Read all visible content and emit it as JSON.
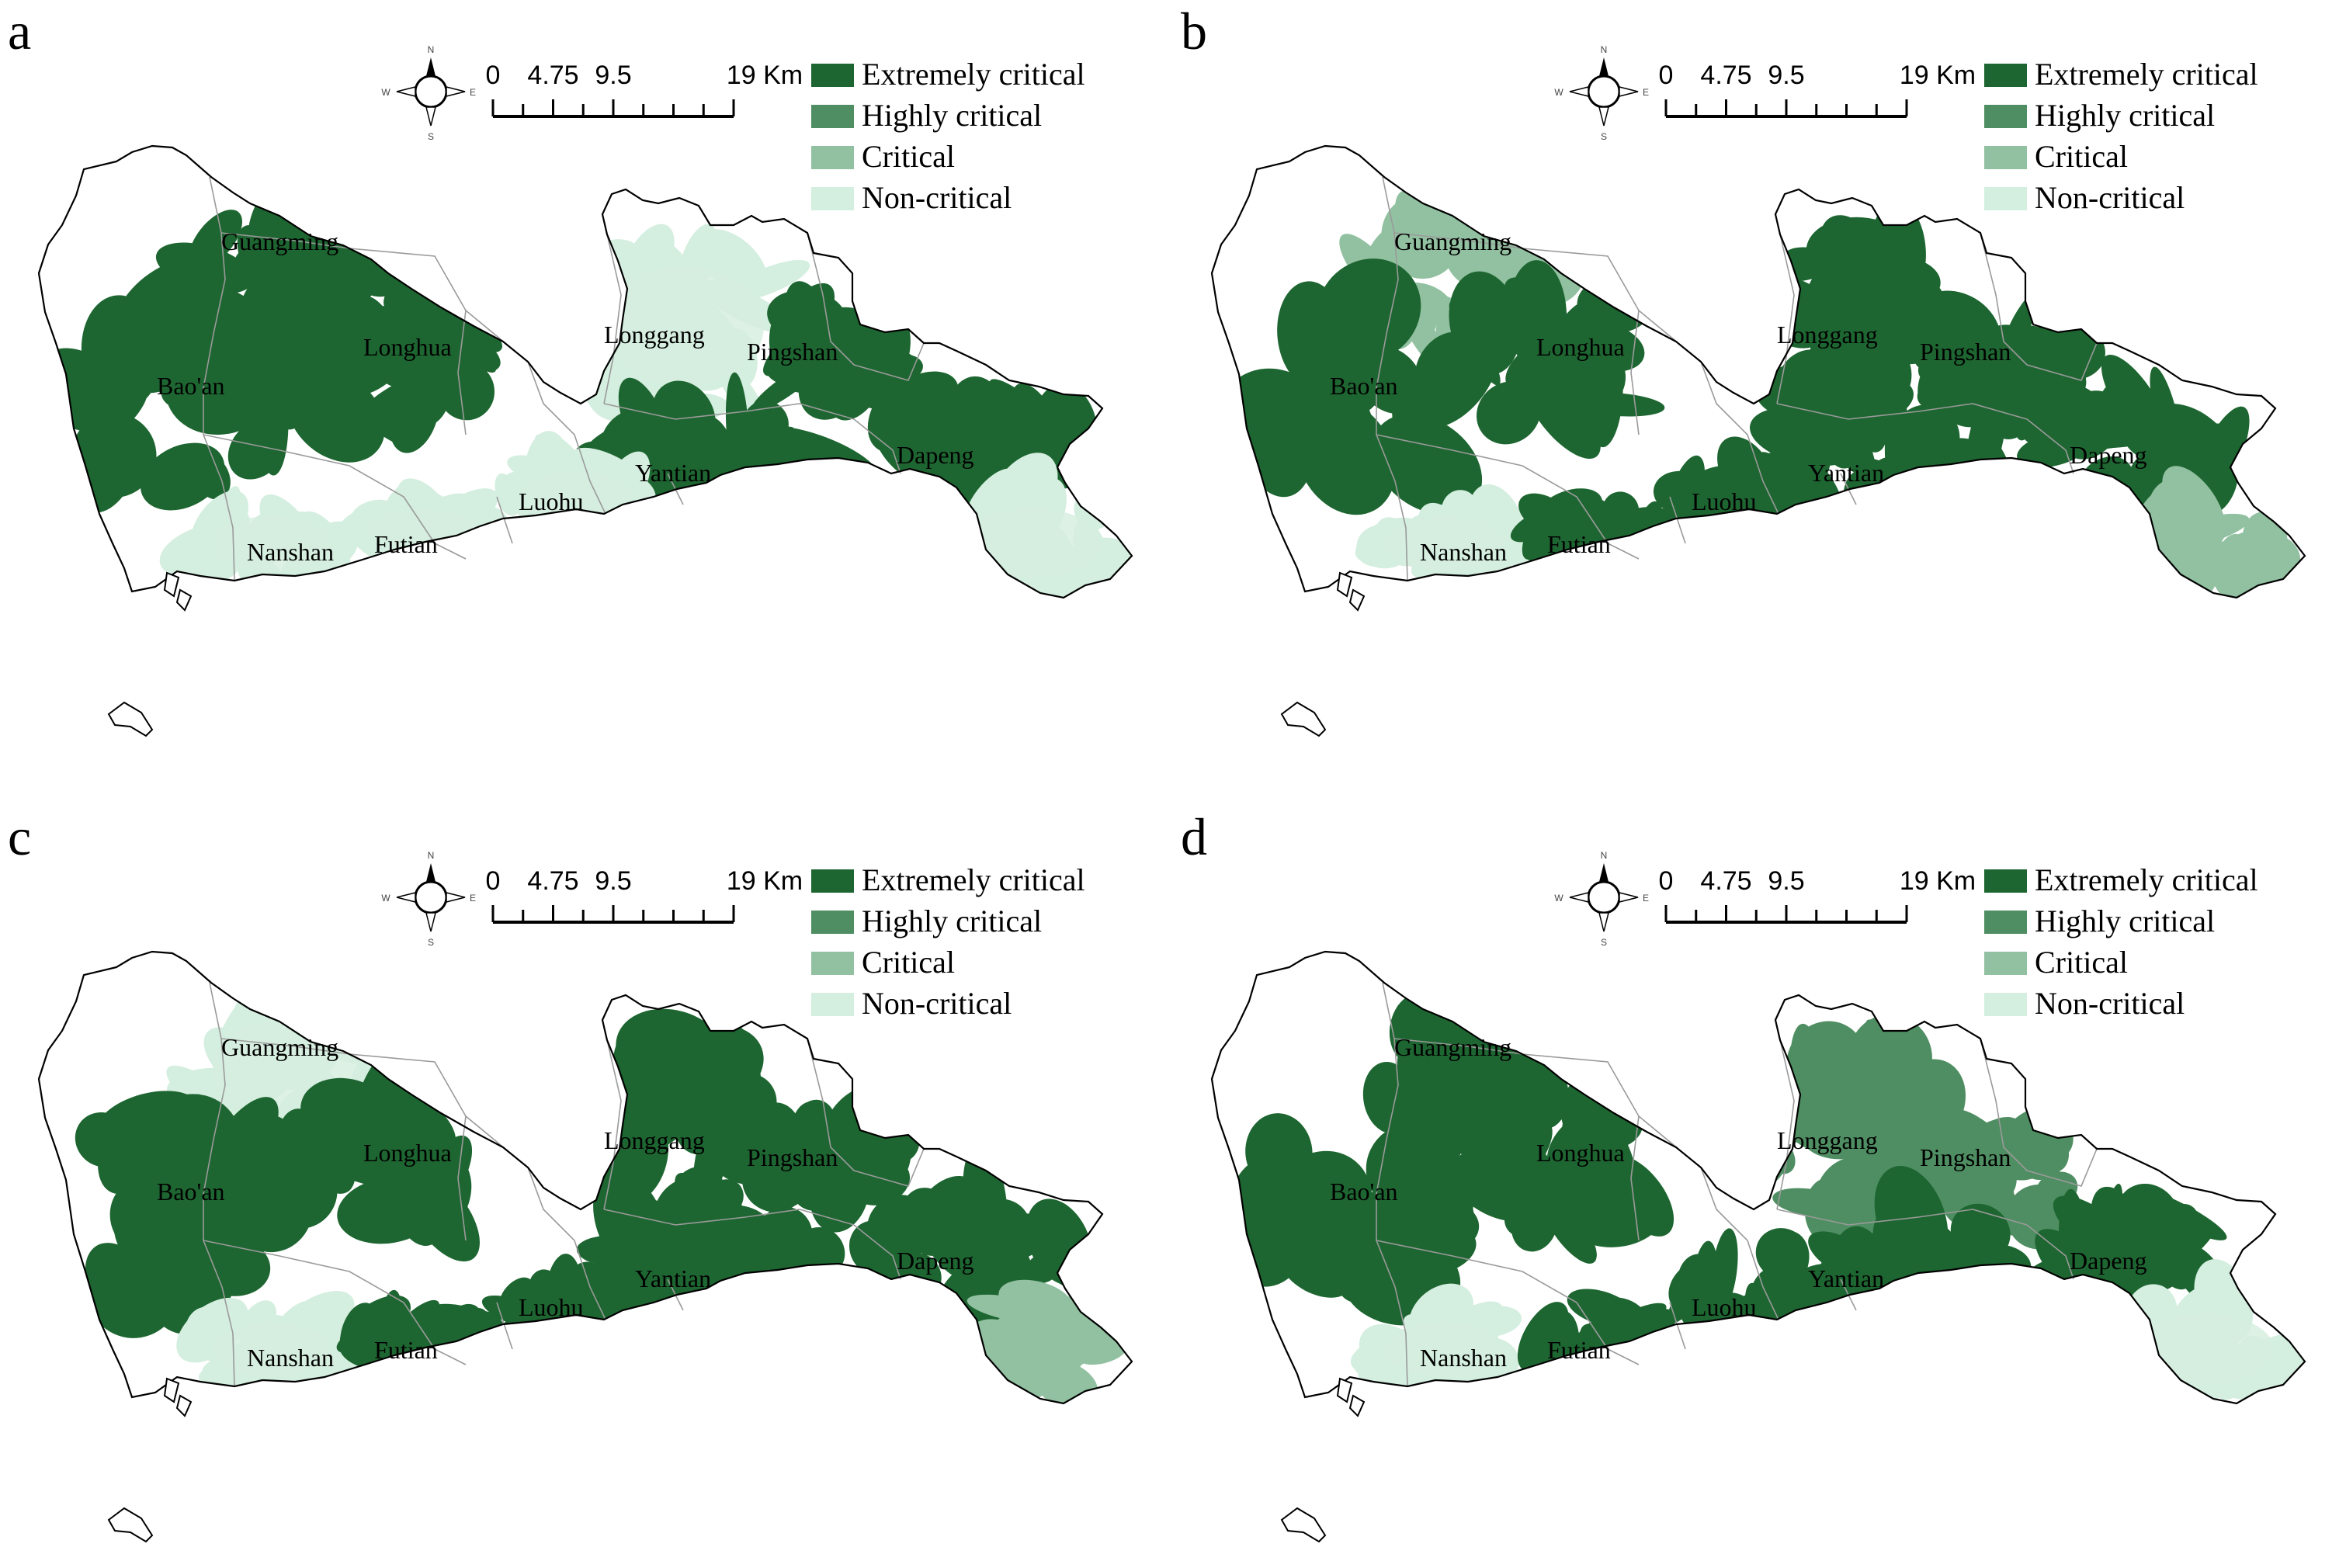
{
  "figure": {
    "scalebar": {
      "labels": [
        "0",
        "4.75",
        "9.5",
        "19 Km"
      ]
    },
    "north_arrow": {
      "n": "N",
      "s": "S",
      "e": "E",
      "w": "W"
    },
    "legend": [
      {
        "label": "Extremely critical",
        "color": "#1e6631"
      },
      {
        "label": "Highly critical",
        "color": "#4f8e62"
      },
      {
        "label": "Critical",
        "color": "#92c1a1"
      },
      {
        "label": "Non-critical",
        "color": "#d4eedf"
      }
    ],
    "districts": [
      "Guangming",
      "Longhua",
      "Bao'an",
      "Longgang",
      "Pingshan",
      "Dapeng",
      "Yantian",
      "Luohu",
      "Nanshan",
      "Futian"
    ]
  },
  "panels": [
    {
      "label": "a",
      "levels": {
        "Guangming": 0,
        "Longhua": 0,
        "Bao'an": 0,
        "Longgang": 3,
        "Pingshan": 0,
        "Dapeng": 0,
        "Yantian": 0,
        "Luohu": 3,
        "Nanshan": 3,
        "Futian": 3,
        "SE": 3
      }
    },
    {
      "label": "b",
      "levels": {
        "Guangming": 2,
        "Longhua": 0,
        "Bao'an": 0,
        "Longgang": 0,
        "Pingshan": 0,
        "Dapeng": 0,
        "Yantian": 0,
        "Luohu": 0,
        "Nanshan": 3,
        "Futian": 0,
        "SE": 2
      }
    },
    {
      "label": "c",
      "levels": {
        "Guangming": 3,
        "Longhua": 0,
        "Bao'an": 0,
        "Longgang": 0,
        "Pingshan": 0,
        "Dapeng": 0,
        "Yantian": 0,
        "Luohu": 0,
        "Nanshan": 3,
        "Futian": 0,
        "SE": 2
      }
    },
    {
      "label": "d",
      "levels": {
        "Guangming": 0,
        "Longhua": 0,
        "Bao'an": 0,
        "Longgang": 1,
        "Pingshan": 1,
        "Dapeng": 0,
        "Yantian": 0,
        "Luohu": 0,
        "Nanshan": 3,
        "Futian": 0,
        "SE": 3
      }
    }
  ]
}
